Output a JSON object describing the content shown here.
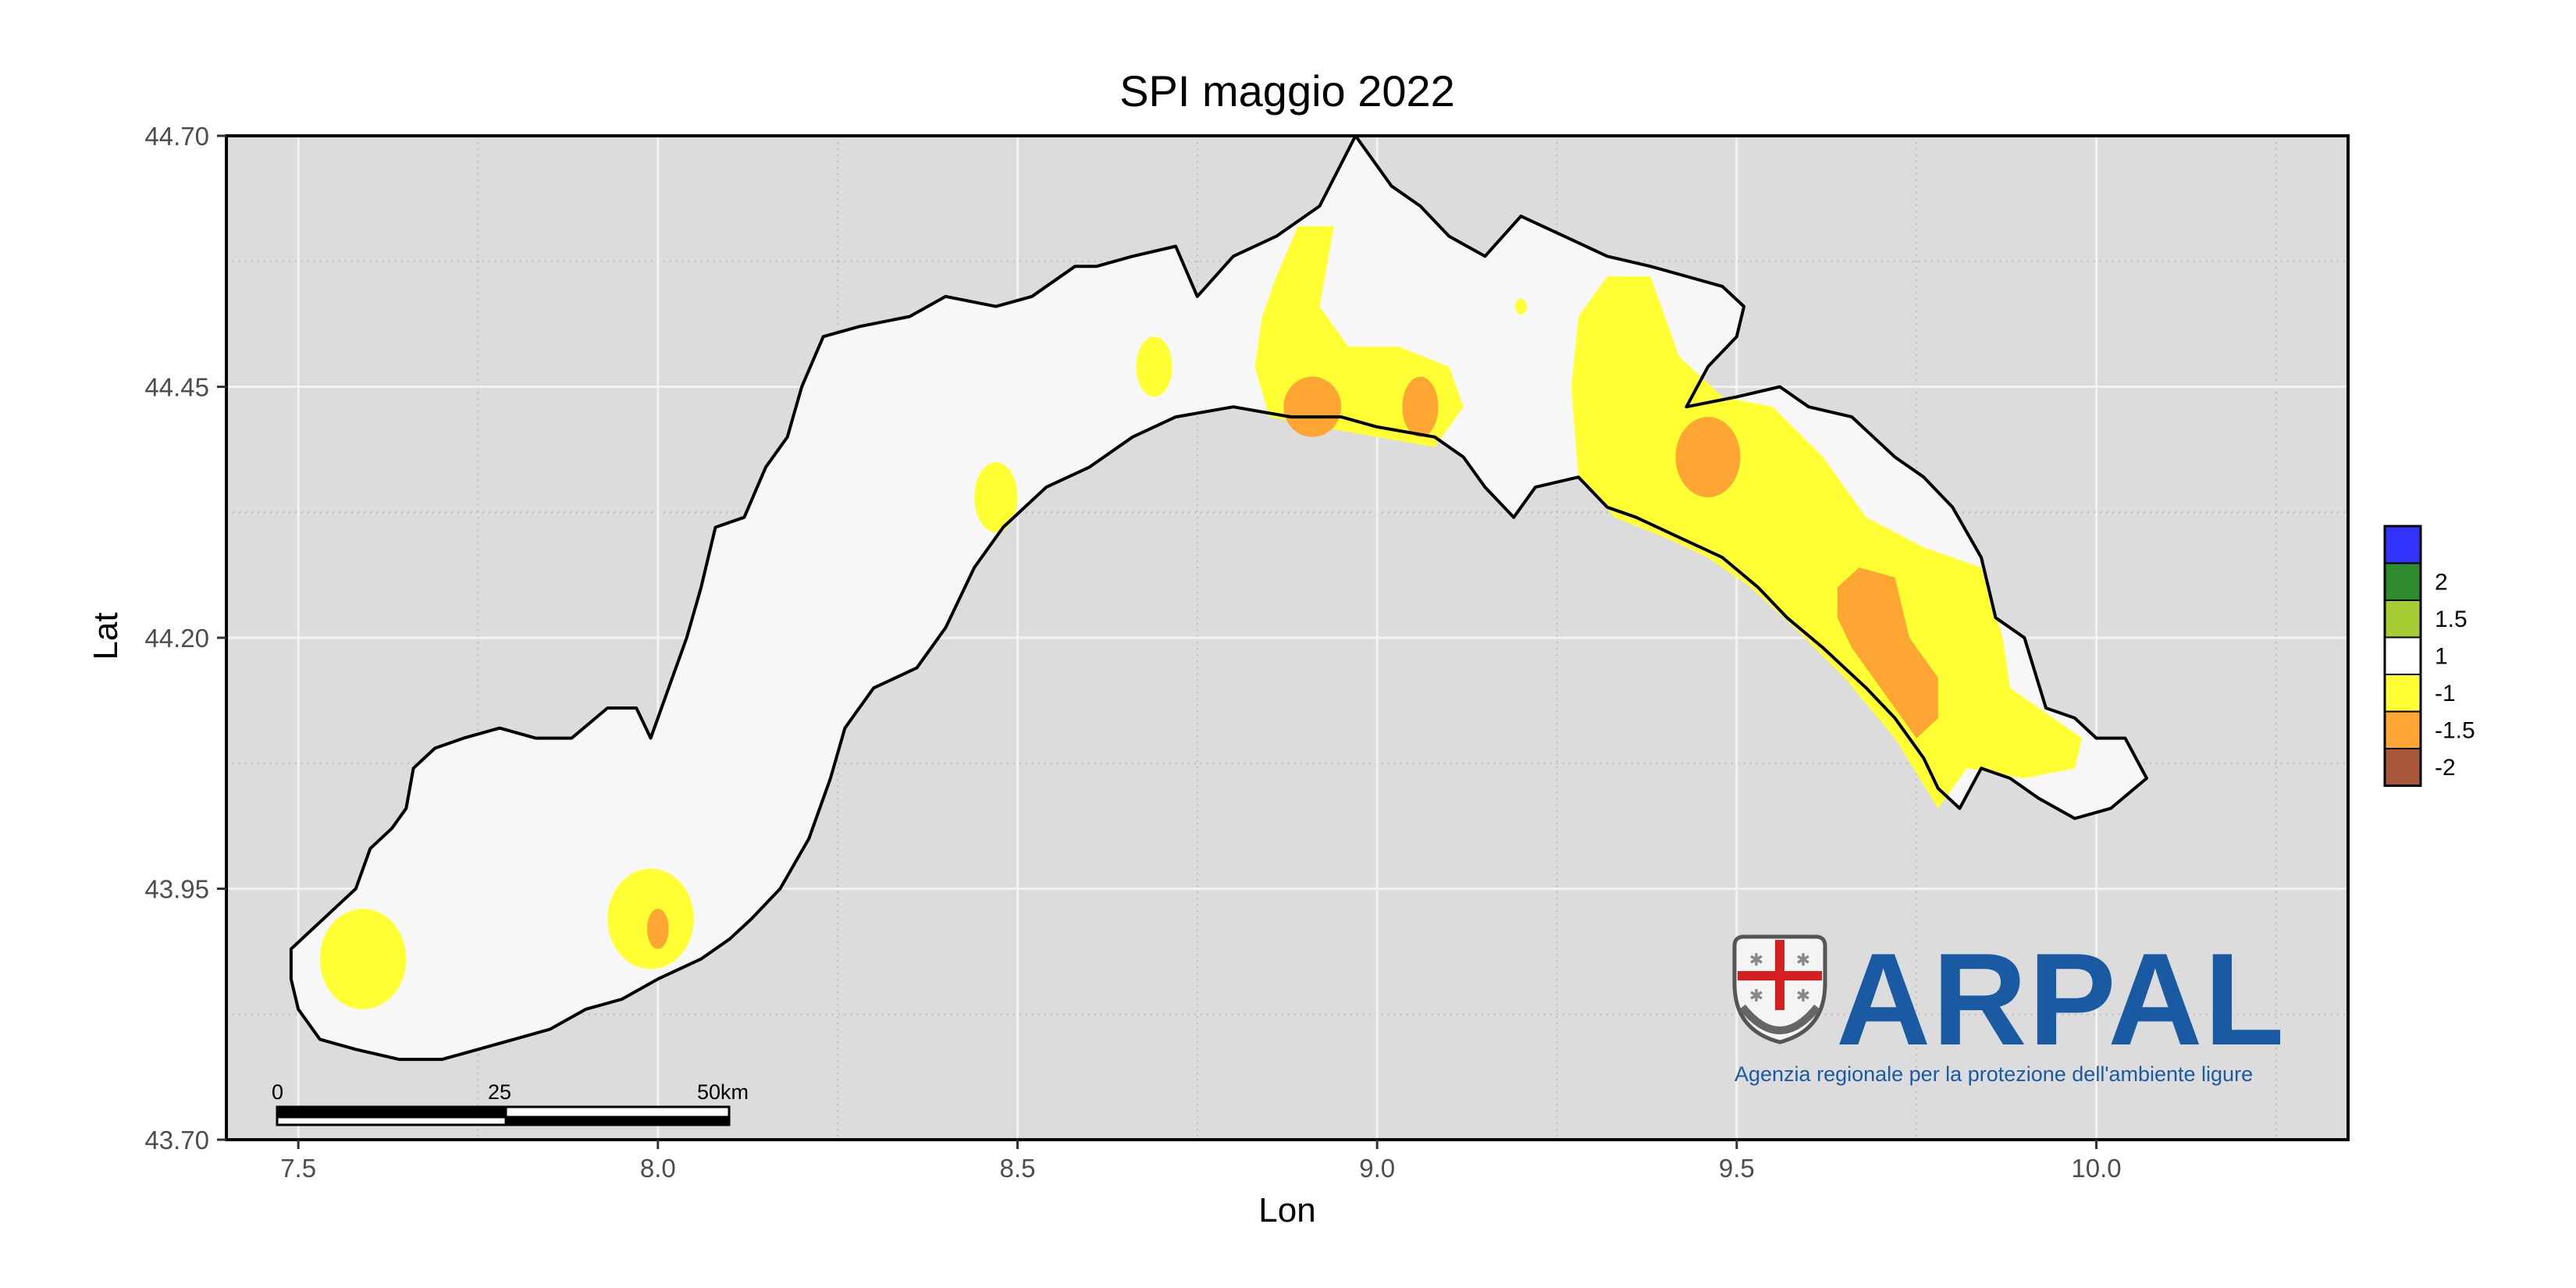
{
  "chart_data": {
    "type": "heatmap",
    "title": "SPI maggio 2022",
    "xlabel": "Lon",
    "ylabel": "Lat",
    "xlim": [
      7.4,
      10.35
    ],
    "ylim": [
      43.7,
      44.7
    ],
    "xticks": [
      "7.5",
      "8.0",
      "8.5",
      "9.0",
      "9.5",
      "10.0"
    ],
    "xtick_values": [
      7.5,
      8.0,
      8.5,
      9.0,
      9.5,
      10.0
    ],
    "yticks": [
      "43.70",
      "43.95",
      "44.20",
      "44.45",
      "44.70"
    ],
    "ytick_values": [
      43.7,
      43.95,
      44.2,
      44.45,
      44.7
    ],
    "grid": true,
    "legend_position": "right",
    "legend": [
      {
        "label": "",
        "color": "#3333ff"
      },
      {
        "label": "2",
        "color": "#2e8b2e"
      },
      {
        "label": "1.5",
        "color": "#a6cc33"
      },
      {
        "label": "1",
        "color": "#ffffff"
      },
      {
        "label": "-1",
        "color": "#ffff33"
      },
      {
        "label": "-1.5",
        "color": "#ffa533"
      },
      {
        "label": "-2",
        "color": "#a8573a"
      }
    ],
    "background_class_color": "#f7f7f7",
    "region_outline": [
      [
        7.49,
        43.89
      ],
      [
        7.52,
        43.91
      ],
      [
        7.55,
        43.93
      ],
      [
        7.58,
        43.95
      ],
      [
        7.6,
        43.99
      ],
      [
        7.63,
        44.01
      ],
      [
        7.65,
        44.03
      ],
      [
        7.66,
        44.07
      ],
      [
        7.69,
        44.09
      ],
      [
        7.73,
        44.1
      ],
      [
        7.78,
        44.11
      ],
      [
        7.83,
        44.1
      ],
      [
        7.88,
        44.1
      ],
      [
        7.93,
        44.13
      ],
      [
        7.97,
        44.13
      ],
      [
        7.99,
        44.1
      ],
      [
        8.02,
        44.16
      ],
      [
        8.04,
        44.2
      ],
      [
        8.06,
        44.25
      ],
      [
        8.08,
        44.31
      ],
      [
        8.12,
        44.32
      ],
      [
        8.15,
        44.37
      ],
      [
        8.18,
        44.4
      ],
      [
        8.2,
        44.45
      ],
      [
        8.23,
        44.5
      ],
      [
        8.28,
        44.51
      ],
      [
        8.35,
        44.52
      ],
      [
        8.4,
        44.54
      ],
      [
        8.47,
        44.53
      ],
      [
        8.52,
        44.54
      ],
      [
        8.58,
        44.57
      ],
      [
        8.61,
        44.57
      ],
      [
        8.66,
        44.58
      ],
      [
        8.72,
        44.59
      ],
      [
        8.75,
        44.54
      ],
      [
        8.8,
        44.58
      ],
      [
        8.86,
        44.6
      ],
      [
        8.92,
        44.63
      ],
      [
        8.97,
        44.7
      ],
      [
        9.02,
        44.65
      ],
      [
        9.06,
        44.63
      ],
      [
        9.1,
        44.6
      ],
      [
        9.15,
        44.58
      ],
      [
        9.2,
        44.62
      ],
      [
        9.26,
        44.6
      ],
      [
        9.32,
        44.58
      ],
      [
        9.38,
        44.57
      ],
      [
        9.43,
        44.56
      ],
      [
        9.48,
        44.55
      ],
      [
        9.51,
        44.53
      ],
      [
        9.5,
        44.5
      ],
      [
        9.46,
        44.47
      ],
      [
        9.43,
        44.43
      ],
      [
        9.5,
        44.44
      ],
      [
        9.56,
        44.45
      ],
      [
        9.6,
        44.43
      ],
      [
        9.66,
        44.42
      ],
      [
        9.72,
        44.38
      ],
      [
        9.76,
        44.36
      ],
      [
        9.8,
        44.33
      ],
      [
        9.84,
        44.28
      ],
      [
        9.86,
        44.22
      ],
      [
        9.9,
        44.2
      ],
      [
        9.93,
        44.13
      ],
      [
        9.97,
        44.12
      ],
      [
        10.0,
        44.1
      ],
      [
        10.04,
        44.1
      ],
      [
        10.07,
        44.06
      ],
      [
        10.02,
        44.03
      ],
      [
        9.97,
        44.02
      ],
      [
        9.92,
        44.04
      ],
      [
        9.88,
        44.06
      ],
      [
        9.84,
        44.07
      ],
      [
        9.81,
        44.03
      ],
      [
        9.78,
        44.05
      ],
      [
        9.76,
        44.08
      ],
      [
        9.72,
        44.12
      ],
      [
        9.68,
        44.15
      ],
      [
        9.62,
        44.19
      ],
      [
        9.57,
        44.22
      ],
      [
        9.53,
        44.25
      ],
      [
        9.48,
        44.28
      ],
      [
        9.42,
        44.3
      ],
      [
        9.36,
        44.32
      ],
      [
        9.32,
        44.33
      ],
      [
        9.28,
        44.36
      ],
      [
        9.22,
        44.35
      ],
      [
        9.19,
        44.32
      ],
      [
        9.15,
        44.35
      ],
      [
        9.12,
        44.38
      ],
      [
        9.08,
        44.4
      ],
      [
        9.0,
        44.41
      ],
      [
        8.95,
        44.42
      ],
      [
        8.88,
        44.42
      ],
      [
        8.8,
        44.43
      ],
      [
        8.72,
        44.42
      ],
      [
        8.66,
        44.4
      ],
      [
        8.6,
        44.37
      ],
      [
        8.54,
        44.35
      ],
      [
        8.48,
        44.31
      ],
      [
        8.44,
        44.27
      ],
      [
        8.4,
        44.21
      ],
      [
        8.36,
        44.17
      ],
      [
        8.3,
        44.15
      ],
      [
        8.26,
        44.11
      ],
      [
        8.24,
        44.06
      ],
      [
        8.21,
        44.0
      ],
      [
        8.17,
        43.95
      ],
      [
        8.13,
        43.92
      ],
      [
        8.1,
        43.9
      ],
      [
        8.06,
        43.88
      ],
      [
        8.0,
        43.86
      ],
      [
        7.95,
        43.84
      ],
      [
        7.9,
        43.83
      ],
      [
        7.85,
        43.81
      ],
      [
        7.8,
        43.8
      ],
      [
        7.75,
        43.79
      ],
      [
        7.7,
        43.78
      ],
      [
        7.64,
        43.78
      ],
      [
        7.58,
        43.79
      ],
      [
        7.53,
        43.8
      ],
      [
        7.5,
        43.83
      ],
      [
        7.49,
        43.86
      ]
    ],
    "spi_areas": [
      {
        "class": "-1",
        "shape": "ellipse",
        "center": [
          7.59,
          43.88
        ],
        "radius": [
          0.06,
          0.05
        ]
      },
      {
        "class": "-1",
        "shape": "ellipse",
        "center": [
          7.99,
          43.92
        ],
        "radius": [
          0.06,
          0.05
        ]
      },
      {
        "class": "-1.5",
        "shape": "ellipse",
        "center": [
          8.0,
          43.91
        ],
        "radius": [
          0.015,
          0.02
        ]
      },
      {
        "class": "-1",
        "shape": "ellipse",
        "center": [
          8.47,
          44.34
        ],
        "radius": [
          0.03,
          0.035
        ]
      },
      {
        "class": "-1",
        "shape": "ellipse",
        "center": [
          8.69,
          44.47
        ],
        "radius": [
          0.025,
          0.03
        ]
      },
      {
        "class": "-1",
        "shape": "polygon",
        "points": [
          [
            8.84,
            44.52
          ],
          [
            8.86,
            44.56
          ],
          [
            8.89,
            44.61
          ],
          [
            8.94,
            44.61
          ],
          [
            8.92,
            44.53
          ],
          [
            8.96,
            44.49
          ],
          [
            9.03,
            44.49
          ],
          [
            9.1,
            44.47
          ],
          [
            9.12,
            44.43
          ],
          [
            9.08,
            44.39
          ],
          [
            9.0,
            44.4
          ],
          [
            8.92,
            44.41
          ],
          [
            8.85,
            44.42
          ],
          [
            8.83,
            44.47
          ]
        ]
      },
      {
        "class": "-1.5",
        "shape": "ellipse",
        "center": [
          8.91,
          44.43
        ],
        "radius": [
          0.04,
          0.03
        ]
      },
      {
        "class": "-1.5",
        "shape": "ellipse",
        "center": [
          9.06,
          44.43
        ],
        "radius": [
          0.025,
          0.03
        ]
      },
      {
        "class": "-1",
        "shape": "polygon",
        "points": [
          [
            9.28,
            44.52
          ],
          [
            9.32,
            44.56
          ],
          [
            9.38,
            44.56
          ],
          [
            9.42,
            44.48
          ],
          [
            9.48,
            44.44
          ],
          [
            9.55,
            44.43
          ],
          [
            9.62,
            44.38
          ],
          [
            9.68,
            44.32
          ],
          [
            9.76,
            44.29
          ],
          [
            9.84,
            44.27
          ],
          [
            9.87,
            44.2
          ],
          [
            9.88,
            44.15
          ],
          [
            9.94,
            44.12
          ],
          [
            9.98,
            44.1
          ],
          [
            9.97,
            44.07
          ],
          [
            9.9,
            44.06
          ],
          [
            9.82,
            44.07
          ],
          [
            9.78,
            44.03
          ],
          [
            9.72,
            44.1
          ],
          [
            9.65,
            44.16
          ],
          [
            9.58,
            44.21
          ],
          [
            9.52,
            44.25
          ],
          [
            9.46,
            44.28
          ],
          [
            9.4,
            44.3
          ],
          [
            9.33,
            44.32
          ],
          [
            9.28,
            44.36
          ],
          [
            9.27,
            44.45
          ]
        ]
      },
      {
        "class": "-1.5",
        "shape": "ellipse",
        "center": [
          9.46,
          44.38
        ],
        "radius": [
          0.045,
          0.04
        ]
      },
      {
        "class": "-1.5",
        "shape": "polygon",
        "points": [
          [
            9.64,
            44.25
          ],
          [
            9.67,
            44.27
          ],
          [
            9.72,
            44.26
          ],
          [
            9.74,
            44.2
          ],
          [
            9.78,
            44.16
          ],
          [
            9.78,
            44.12
          ],
          [
            9.75,
            44.1
          ],
          [
            9.71,
            44.14
          ],
          [
            9.66,
            44.19
          ],
          [
            9.64,
            44.22
          ]
        ]
      },
      {
        "class": "-1",
        "shape": "ellipse",
        "center": [
          9.2,
          44.53
        ],
        "radius": [
          0.008,
          0.008
        ]
      }
    ],
    "scalebar": {
      "labels": [
        "0",
        "25",
        "50km"
      ]
    }
  },
  "logo": {
    "word": "ARPAL",
    "subtitle": "Agenzia regionale per la protezione dell'ambiente ligure"
  }
}
